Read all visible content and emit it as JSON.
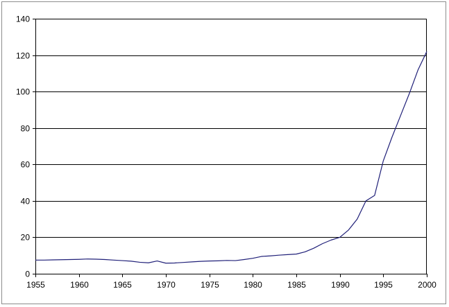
{
  "chart_data": {
    "type": "line",
    "title": "",
    "xlabel": "",
    "ylabel": "",
    "xlim": [
      1955,
      2000
    ],
    "ylim": [
      0,
      140
    ],
    "x_ticks": [
      "1955",
      "1960",
      "1965",
      "1970",
      "1975",
      "1980",
      "1985",
      "1990",
      "1995",
      "2000"
    ],
    "y_ticks": [
      "0",
      "20",
      "40",
      "60",
      "80",
      "100",
      "120",
      "140"
    ],
    "grid": "horizontal",
    "legend": "none",
    "colors": {
      "line": "#1f1f78",
      "grid": "#000000",
      "axis": "#000000"
    },
    "series": [
      {
        "x": [
          1955,
          1956,
          1957,
          1958,
          1959,
          1960,
          1961,
          1962,
          1963,
          1964,
          1965,
          1966,
          1967,
          1968,
          1969,
          1970,
          1971,
          1972,
          1973,
          1974,
          1975,
          1976,
          1977,
          1978,
          1979,
          1980,
          1981,
          1982,
          1983,
          1984,
          1985,
          1986,
          1987,
          1988,
          1989,
          1990,
          1991,
          1992,
          1993,
          1994,
          1995,
          1996,
          1997,
          1998,
          1999,
          2000
        ],
        "values": [
          7.5,
          7.5,
          7.6,
          7.7,
          7.8,
          7.9,
          8.1,
          8.0,
          7.8,
          7.5,
          7.2,
          6.9,
          6.3,
          6.0,
          7.0,
          5.8,
          5.9,
          6.2,
          6.5,
          6.8,
          7.0,
          7.1,
          7.3,
          7.2,
          7.8,
          8.5,
          9.5,
          9.8,
          10.2,
          10.5,
          10.8,
          12.0,
          14.0,
          16.5,
          18.5,
          20.0,
          24.0,
          30.0,
          40.0,
          43.0,
          62.0,
          75.0,
          87.0,
          99.0,
          112.0,
          122.0
        ]
      }
    ]
  }
}
